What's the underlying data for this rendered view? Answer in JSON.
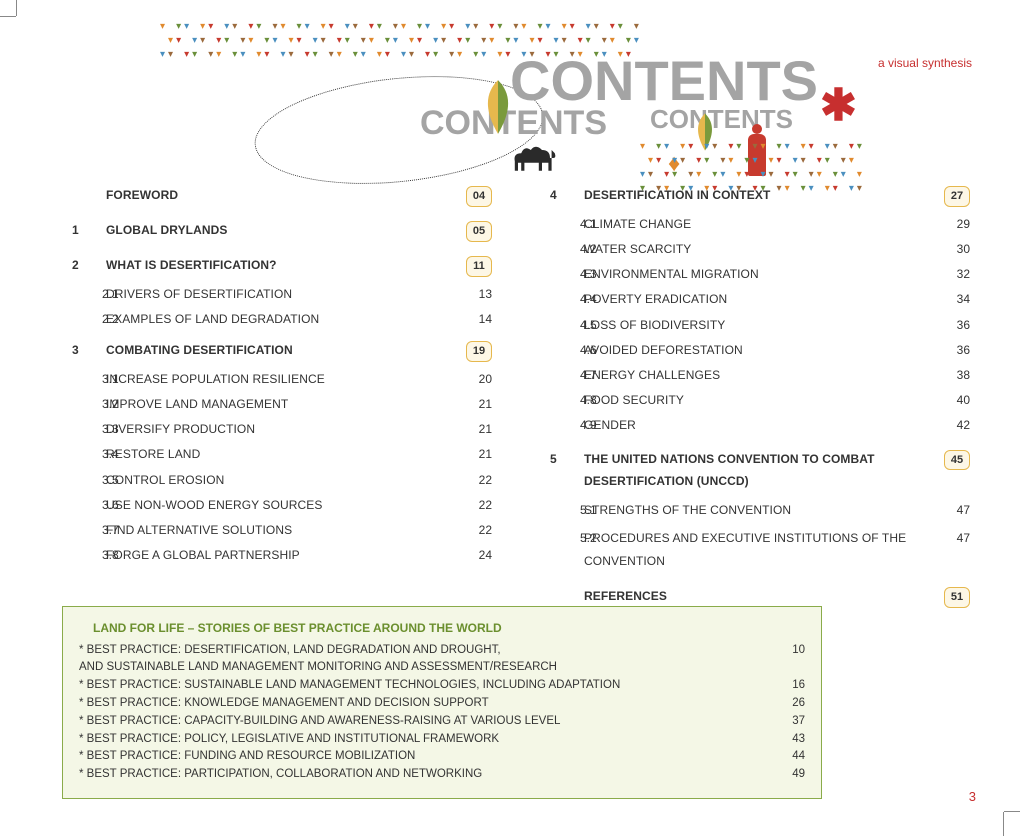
{
  "tagline": "a visual synthesis",
  "title_main": "CONTENTS",
  "title_echo1": "CONTENTS",
  "title_echo2": "CONTENTS",
  "page_number": "3",
  "colors": {
    "accent_red": "#c72f2f",
    "badge_border": "#e6b84d",
    "badge_bg": "#fdf7e6",
    "box_border": "#8aab4a",
    "box_bg": "#f4f7e6",
    "box_title": "#6b8f2e",
    "grey_title": "#a4a4a4",
    "orange": "#e08a2e",
    "blue": "#4a8fbf",
    "brown": "#9b6a3c"
  },
  "left_column": [
    {
      "type": "chapter",
      "num": "",
      "title": "FOREWORD",
      "page": "04",
      "badge": true
    },
    {
      "type": "chapter",
      "num": "1",
      "title": "GLOBAL DRYLANDS",
      "page": "05",
      "badge": true
    },
    {
      "type": "chapter",
      "num": "2",
      "title": "WHAT IS DESERTIFICATION?",
      "page": "11",
      "badge": true
    },
    {
      "type": "sub",
      "num": "2.1",
      "title": "DRIVERS OF DESERTIFICATION",
      "page": "13"
    },
    {
      "type": "sub",
      "num": "2.2",
      "title": "EXAMPLES OF LAND DEGRADATION",
      "page": "14"
    },
    {
      "type": "chapter",
      "num": "3",
      "title": "COMBATING DESERTIFICATION",
      "page": "19",
      "badge": true
    },
    {
      "type": "sub",
      "num": "3.1",
      "title": "INCREASE POPULATION RESILIENCE",
      "page": "20"
    },
    {
      "type": "sub",
      "num": "3.2",
      "title": "IMPROVE LAND MANAGEMENT",
      "page": "21"
    },
    {
      "type": "sub",
      "num": "3.3",
      "title": "DIVERSIFY PRODUCTION",
      "page": "21"
    },
    {
      "type": "sub",
      "num": "3.4",
      "title": "RESTORE LAND",
      "page": "21"
    },
    {
      "type": "sub",
      "num": "3.5",
      "title": "CONTROL EROSION",
      "page": "22"
    },
    {
      "type": "sub",
      "num": "3.6",
      "title": "USE NON-WOOD ENERGY SOURCES",
      "page": "22"
    },
    {
      "type": "sub",
      "num": "3.7",
      "title": "FIND ALTERNATIVE SOLUTIONS",
      "page": "22"
    },
    {
      "type": "sub",
      "num": "3.8",
      "title": "FORGE A GLOBAL PARTNERSHIP",
      "page": "24"
    }
  ],
  "right_column": [
    {
      "type": "chapter",
      "num": "4",
      "title": "DESERTIFICATION IN CONTEXT",
      "page": "27",
      "badge": true
    },
    {
      "type": "sub",
      "num": "4.1",
      "title": "CLIMATE CHANGE",
      "page": "29"
    },
    {
      "type": "sub",
      "num": "4.2",
      "title": "WATER SCARCITY",
      "page": "30"
    },
    {
      "type": "sub",
      "num": "4.3",
      "title": "ENVIRONMENTAL MIGRATION",
      "page": "32"
    },
    {
      "type": "sub",
      "num": "4.4",
      "title": "POVERTY ERADICATION",
      "page": "34"
    },
    {
      "type": "sub",
      "num": "4.5",
      "title": "LOSS OF BIODIVERSITY",
      "page": "36"
    },
    {
      "type": "sub",
      "num": "4.6",
      "title": "AVOIDED DEFORESTATION",
      "page": "36"
    },
    {
      "type": "sub",
      "num": "4.7",
      "title": "ENERGY CHALLENGES",
      "page": "38"
    },
    {
      "type": "sub",
      "num": "4.8",
      "title": "FOOD SECURITY",
      "page": "40"
    },
    {
      "type": "sub",
      "num": "4.9",
      "title": "GENDER",
      "page": "42"
    },
    {
      "type": "chapter",
      "num": "5",
      "title": "THE UNITED NATIONS CONVENTION TO COMBAT DESERTIFICATION (UNCCD)",
      "page": "45",
      "badge": true,
      "multiline": true
    },
    {
      "type": "sub",
      "num": "5.1",
      "title": "STRENGTHS OF THE CONVENTION",
      "page": "47"
    },
    {
      "type": "sub",
      "num": "5.2",
      "title": "PROCEDURES AND EXECUTIVE INSTITUTIONS OF THE CONVENTION",
      "page": "47",
      "multiline": true
    },
    {
      "type": "chapter",
      "num": "",
      "title": "REFERENCES",
      "page": "51",
      "badge": true
    }
  ],
  "best_practice": {
    "title": "LAND FOR LIFE – STORIES OF BEST PRACTICE AROUND THE WORLD",
    "items": [
      {
        "text": "* BEST PRACTICE: DESERTIFICATION, LAND DEGRADATION AND DROUGHT,\n   AND SUSTAINABLE LAND MANAGEMENT MONITORING AND ASSESSMENT/RESEARCH",
        "page": "10"
      },
      {
        "text": "* BEST PRACTICE: SUSTAINABLE LAND MANAGEMENT TECHNOLOGIES, INCLUDING ADAPTATION",
        "page": "16"
      },
      {
        "text": "* BEST PRACTICE: KNOWLEDGE MANAGEMENT AND DECISION SUPPORT",
        "page": "26"
      },
      {
        "text": "* BEST PRACTICE: CAPACITY-BUILDING AND AWARENESS-RAISING AT VARIOUS LEVEL",
        "page": "37"
      },
      {
        "text": "* BEST PRACTICE: POLICY, LEGISLATIVE AND INSTITUTIONAL FRAMEWORK",
        "page": "43"
      },
      {
        "text": "* BEST PRACTICE: FUNDING AND RESOURCE MOBILIZATION",
        "page": "44"
      },
      {
        "text": "* BEST PRACTICE: PARTICIPATION, COLLABORATION AND NETWORKING",
        "page": "49"
      }
    ]
  },
  "droplet_colors": [
    "#e08a2e",
    "#4a8fbf",
    "#c73a2e",
    "#9b6a3c",
    "#6a8f3a"
  ]
}
